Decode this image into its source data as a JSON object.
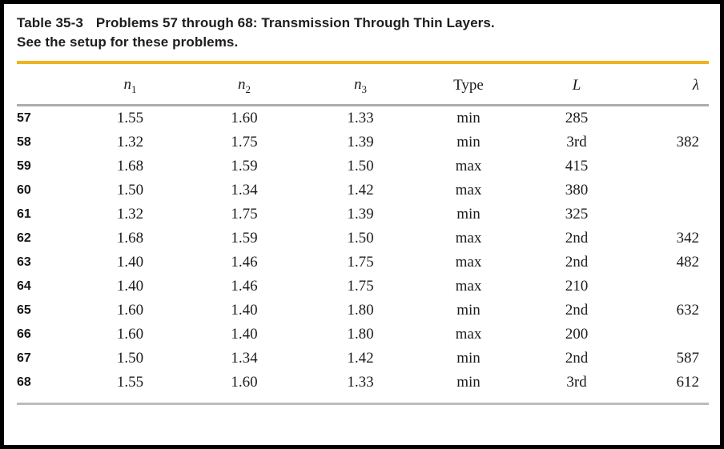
{
  "page": {
    "title_label": "Table 35-3",
    "title_text": "Problems 57 through 68: Transmission Through Thin Layers.",
    "subtitle": "See the setup for these problems."
  },
  "colors": {
    "accent_rule": "#efb221",
    "header_divider": "#aaacae",
    "bottom_divider": "#bcbdbf",
    "frame_border": "#000000",
    "text": "#1b1b1d"
  },
  "table": {
    "columns": [
      {
        "id": "problem",
        "label": "",
        "align": "left"
      },
      {
        "id": "n1",
        "label": "n",
        "sub": "1",
        "italic": true,
        "align": "center"
      },
      {
        "id": "n2",
        "label": "n",
        "sub": "2",
        "italic": true,
        "align": "center"
      },
      {
        "id": "n3",
        "label": "n",
        "sub": "3",
        "italic": true,
        "align": "center"
      },
      {
        "id": "type",
        "label": "Type",
        "align": "center"
      },
      {
        "id": "L",
        "label": "L",
        "italic": true,
        "align": "center"
      },
      {
        "id": "lambda",
        "label": "λ",
        "italic": true,
        "align": "right"
      }
    ],
    "rows": [
      {
        "problem": "57",
        "n1": "1.55",
        "n2": "1.60",
        "n3": "1.33",
        "type": "min",
        "L": "285",
        "lambda": ""
      },
      {
        "problem": "58",
        "n1": "1.32",
        "n2": "1.75",
        "n3": "1.39",
        "type": "min",
        "L": "3rd",
        "lambda": "382"
      },
      {
        "problem": "59",
        "n1": "1.68",
        "n2": "1.59",
        "n3": "1.50",
        "type": "max",
        "L": "415",
        "lambda": ""
      },
      {
        "problem": "60",
        "n1": "1.50",
        "n2": "1.34",
        "n3": "1.42",
        "type": "max",
        "L": "380",
        "lambda": ""
      },
      {
        "problem": "61",
        "n1": "1.32",
        "n2": "1.75",
        "n3": "1.39",
        "type": "min",
        "L": "325",
        "lambda": ""
      },
      {
        "problem": "62",
        "n1": "1.68",
        "n2": "1.59",
        "n3": "1.50",
        "type": "max",
        "L": "2nd",
        "lambda": "342"
      },
      {
        "problem": "63",
        "n1": "1.40",
        "n2": "1.46",
        "n3": "1.75",
        "type": "max",
        "L": "2nd",
        "lambda": "482"
      },
      {
        "problem": "64",
        "n1": "1.40",
        "n2": "1.46",
        "n3": "1.75",
        "type": "max",
        "L": "210",
        "lambda": ""
      },
      {
        "problem": "65",
        "n1": "1.60",
        "n2": "1.40",
        "n3": "1.80",
        "type": "min",
        "L": "2nd",
        "lambda": "632"
      },
      {
        "problem": "66",
        "n1": "1.60",
        "n2": "1.40",
        "n3": "1.80",
        "type": "max",
        "L": "200",
        "lambda": ""
      },
      {
        "problem": "67",
        "n1": "1.50",
        "n2": "1.34",
        "n3": "1.42",
        "type": "min",
        "L": "2nd",
        "lambda": "587"
      },
      {
        "problem": "68",
        "n1": "1.55",
        "n2": "1.60",
        "n3": "1.33",
        "type": "min",
        "L": "3rd",
        "lambda": "612"
      }
    ]
  }
}
